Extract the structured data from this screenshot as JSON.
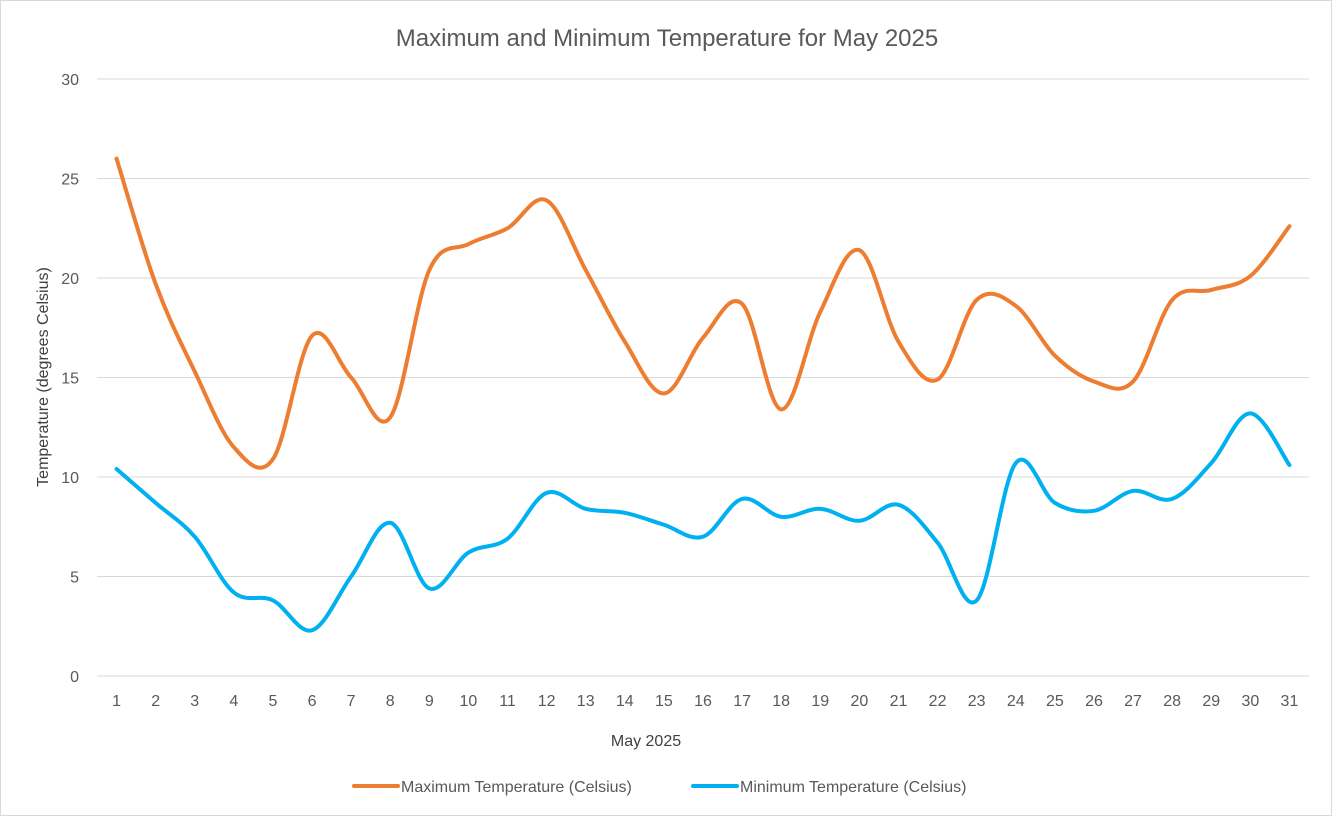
{
  "chart_data": {
    "type": "line",
    "title": "Maximum and Minimum Temperature for May 2025",
    "xlabel": "May 2025",
    "ylabel": "Temperature (degrees Celsius)",
    "categories": [
      "1",
      "2",
      "3",
      "4",
      "5",
      "6",
      "7",
      "8",
      "9",
      "10",
      "11",
      "12",
      "13",
      "14",
      "15",
      "16",
      "17",
      "18",
      "19",
      "20",
      "21",
      "22",
      "23",
      "24",
      "25",
      "26",
      "27",
      "28",
      "29",
      "30",
      "31"
    ],
    "ylim": [
      0,
      30
    ],
    "yticks": [
      0,
      5,
      10,
      15,
      20,
      25,
      30
    ],
    "grid": true,
    "smooth": true,
    "legend_position": "bottom",
    "series": [
      {
        "name": "Maximum Temperature (Celsius)",
        "color": "#ed7d31",
        "values": [
          26.0,
          19.7,
          15.3,
          11.5,
          10.9,
          17.1,
          15.0,
          13.0,
          20.4,
          21.7,
          22.5,
          23.9,
          20.4,
          16.8,
          14.2,
          17.0,
          18.7,
          13.4,
          18.3,
          21.4,
          16.8,
          14.9,
          18.9,
          18.6,
          16.1,
          14.8,
          14.8,
          18.9,
          19.4,
          20.1,
          22.6
        ]
      },
      {
        "name": "Minimum Temperature (Celsius)",
        "color": "#00b0f0",
        "values": [
          10.4,
          8.7,
          7.0,
          4.2,
          3.8,
          2.3,
          5.0,
          7.7,
          4.4,
          6.2,
          6.9,
          9.2,
          8.4,
          8.2,
          7.6,
          7.0,
          8.9,
          8.0,
          8.4,
          7.8,
          8.6,
          6.7,
          3.8,
          10.7,
          8.7,
          8.3,
          9.3,
          8.9,
          10.7,
          13.2,
          10.6
        ]
      }
    ]
  }
}
